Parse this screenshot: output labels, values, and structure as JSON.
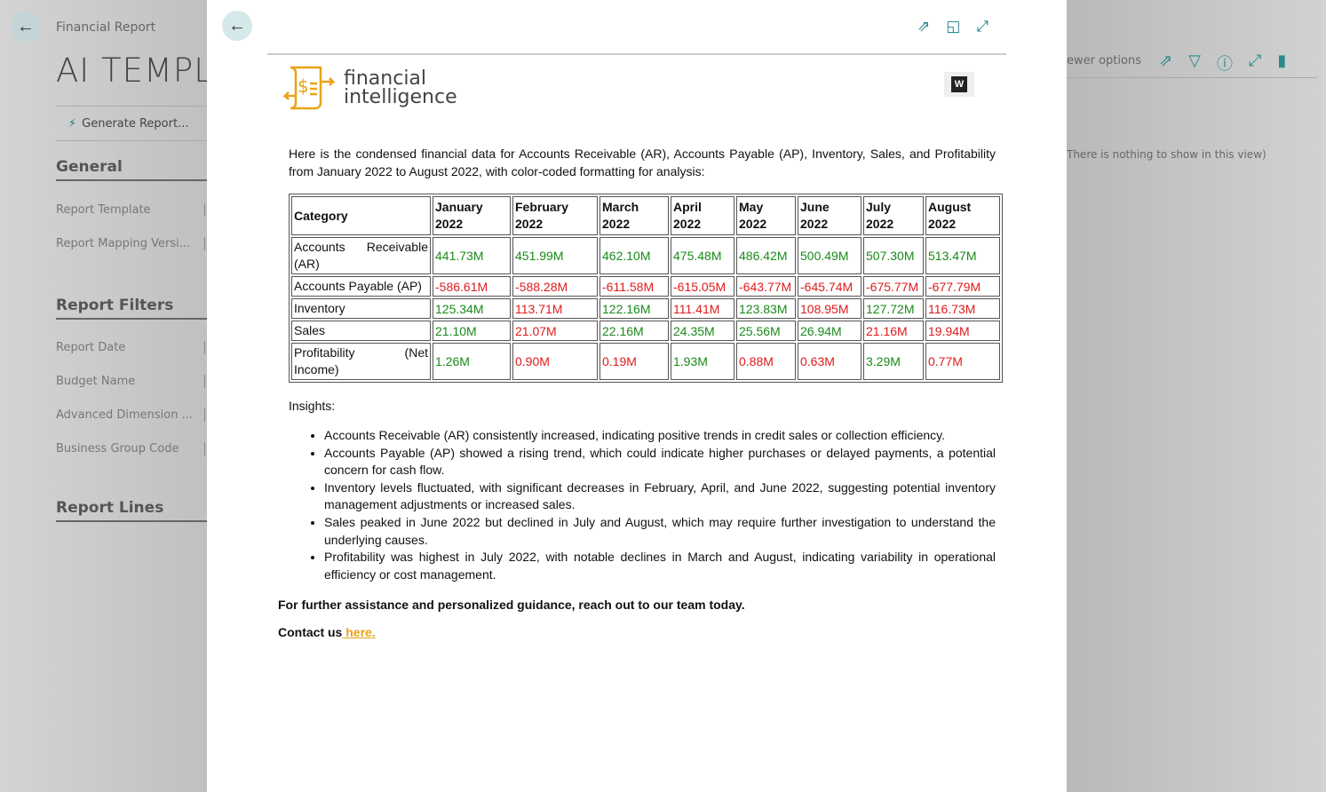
{
  "background": {
    "breadcrumb": "Financial Report",
    "title": "AI TEMPLA",
    "action": "Generate Report...",
    "sections": [
      "General",
      "Report Filters",
      "Report Lines"
    ],
    "general_fields": [
      "Report Template",
      "Report Mapping Versi..."
    ],
    "filter_fields": [
      "Report Date",
      "Budget Name",
      "Advanced Dimension ...",
      "Business Group Code"
    ],
    "right_label": "ewer options",
    "right_empty": "There is nothing to show in this view)",
    "right_icons": [
      "share-icon",
      "filter-icon",
      "info-icon",
      "expand-icon",
      "bookmark-icon"
    ]
  },
  "modal": {
    "icons": [
      "share-icon",
      "open-in-new-window-icon",
      "expand-icon"
    ],
    "logo_line1": "financial",
    "logo_line2": "intelligence",
    "intro": "Here is the condensed financial data for Accounts Receivable (AR), Accounts Payable (AP), Inventory, Sales, and Profitability from January 2022 to August 2022, with color-coded formatting for analysis:",
    "table": {
      "headers": [
        "Category",
        "January 2022",
        "February 2022",
        "March 2022",
        "April 2022",
        "May 2022",
        "June 2022",
        "July 2022",
        "August 2022"
      ],
      "rows": [
        {
          "category": "Accounts Receivable (AR)",
          "cells": [
            [
              "441.73M",
              "pos"
            ],
            [
              "451.99M",
              "pos"
            ],
            [
              "462.10M",
              "pos"
            ],
            [
              "475.48M",
              "pos"
            ],
            [
              "486.42M",
              "pos"
            ],
            [
              "500.49M",
              "pos"
            ],
            [
              "507.30M",
              "pos"
            ],
            [
              "513.47M",
              "pos"
            ]
          ]
        },
        {
          "category": "Accounts Payable (AP)",
          "cells": [
            [
              "-586.61M",
              "neg"
            ],
            [
              "-588.28M",
              "neg"
            ],
            [
              "-611.58M",
              "neg"
            ],
            [
              "-615.05M",
              "neg"
            ],
            [
              "-643.77M",
              "neg"
            ],
            [
              "-645.74M",
              "neg"
            ],
            [
              "-675.77M",
              "neg"
            ],
            [
              "-677.79M",
              "neg"
            ]
          ]
        },
        {
          "category": "Inventory",
          "cells": [
            [
              "125.34M",
              "pos"
            ],
            [
              "113.71M",
              "neg"
            ],
            [
              "122.16M",
              "pos"
            ],
            [
              "111.41M",
              "neg"
            ],
            [
              "123.83M",
              "pos"
            ],
            [
              "108.95M",
              "neg"
            ],
            [
              "127.72M",
              "pos"
            ],
            [
              "116.73M",
              "neg"
            ]
          ]
        },
        {
          "category": "Sales",
          "cells": [
            [
              "21.10M",
              "pos"
            ],
            [
              "21.07M",
              "neg"
            ],
            [
              "22.16M",
              "pos"
            ],
            [
              "24.35M",
              "pos"
            ],
            [
              "25.56M",
              "pos"
            ],
            [
              "26.94M",
              "pos"
            ],
            [
              "21.16M",
              "neg"
            ],
            [
              "19.94M",
              "neg"
            ]
          ]
        },
        {
          "category": "Profitability (Net Income)",
          "cells": [
            [
              "1.26M",
              "pos"
            ],
            [
              "0.90M",
              "neg"
            ],
            [
              "0.19M",
              "neg"
            ],
            [
              "1.93M",
              "pos"
            ],
            [
              "0.88M",
              "neg"
            ],
            [
              "0.63M",
              "neg"
            ],
            [
              "3.29M",
              "pos"
            ],
            [
              "0.77M",
              "neg"
            ]
          ]
        }
      ],
      "colors": {
        "pos": "#1a8a1a",
        "neg": "#e01b1b"
      }
    },
    "insights_label": "Insights:",
    "insights": [
      "Accounts Receivable (AR) consistently increased, indicating positive trends in credit sales or collection efficiency.",
      "Accounts Payable (AP) showed a rising trend, which could indicate higher purchases or delayed payments, a potential concern for cash flow.",
      "Inventory levels fluctuated, with significant decreases in February, April, and June 2022, suggesting potential inventory management adjustments or increased sales.",
      "Sales peaked in June 2022 but declined in July and August, which may require further investigation to understand the underlying causes.",
      "Profitability was highest in July 2022, with notable declines in March and August, indicating variability in operational efficiency or cost management."
    ],
    "cta": "For further assistance and personalized guidance, reach out to our team today.",
    "contact_prefix": "Contact us",
    "contact_link": " here."
  }
}
